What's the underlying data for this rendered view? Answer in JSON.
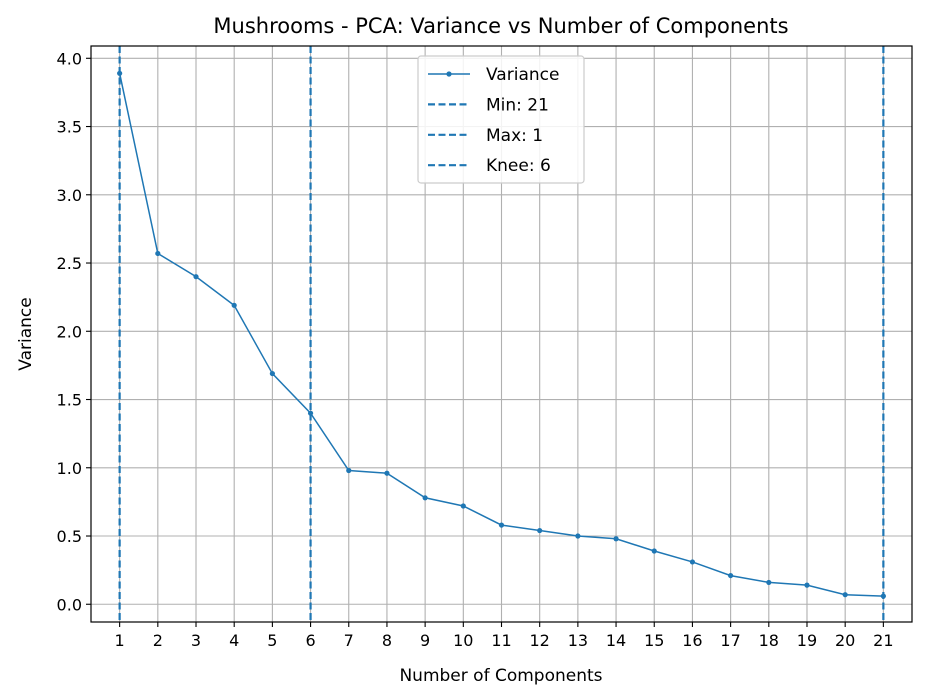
{
  "chart_data": {
    "type": "line",
    "title": "Mushrooms - PCA: Variance vs Number of Components",
    "xlabel": "Number of Components",
    "ylabel": "Variance",
    "x": [
      1,
      2,
      3,
      4,
      5,
      6,
      7,
      8,
      9,
      10,
      11,
      12,
      13,
      14,
      15,
      16,
      17,
      18,
      19,
      20,
      21
    ],
    "xticks": [
      "1",
      "2",
      "3",
      "4",
      "5",
      "6",
      "7",
      "8",
      "9",
      "10",
      "11",
      "12",
      "13",
      "14",
      "15",
      "16",
      "17",
      "18",
      "19",
      "20",
      "21"
    ],
    "yticks": [
      "0.0",
      "0.5",
      "1.0",
      "1.5",
      "2.0",
      "2.5",
      "3.0",
      "3.5",
      "4.0"
    ],
    "ylim": [
      -0.13,
      4.09
    ],
    "xlim": [
      0.25,
      21.75
    ],
    "grid": true,
    "series": [
      {
        "name": "Variance",
        "color": "#1f77b4",
        "marker": "dot",
        "values": [
          3.89,
          2.57,
          2.4,
          2.19,
          1.69,
          1.4,
          0.98,
          0.96,
          0.78,
          0.72,
          0.58,
          0.54,
          0.5,
          0.48,
          0.39,
          0.31,
          0.21,
          0.16,
          0.14,
          0.07,
          0.06
        ]
      }
    ],
    "vlines": [
      {
        "name": "Min: 21",
        "x": 21,
        "color": "#1f77b4",
        "style": "dashed"
      },
      {
        "name": "Max: 1",
        "x": 1,
        "color": "#1f77b4",
        "style": "dashed"
      },
      {
        "name": "Knee: 6",
        "x": 6,
        "color": "#1f77b4",
        "style": "dashed"
      }
    ],
    "legend": {
      "placement": "upper-center",
      "entries": [
        "Variance",
        "Min: 21",
        "Max: 1",
        "Knee: 6"
      ]
    }
  }
}
